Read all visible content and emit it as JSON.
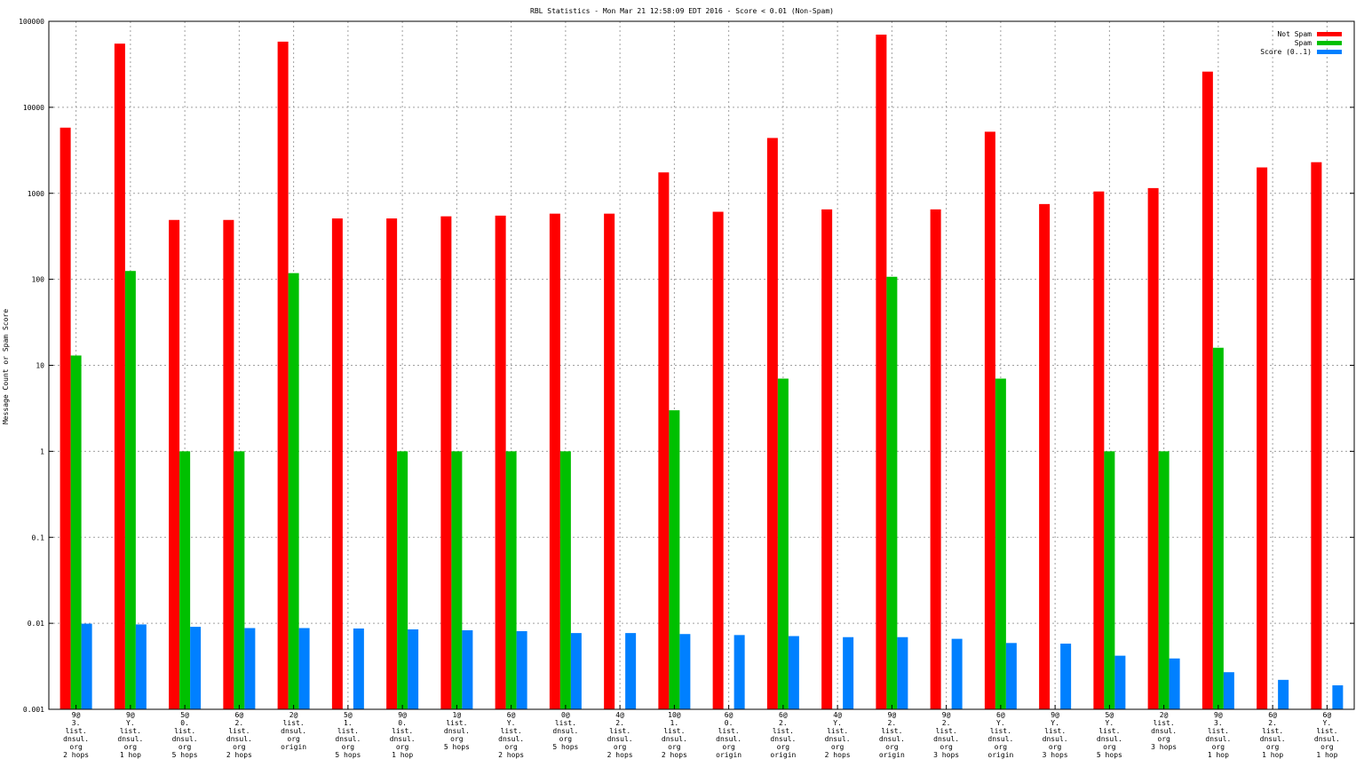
{
  "chart_data": {
    "type": "bar",
    "title": "RBL Statistics - Mon Mar 21 12:58:09 EDT 2016 - Score < 0.01 (Non-Spam)",
    "xlabel": "",
    "ylabel": "Message Count or Spam Score",
    "yscale": "log",
    "ylim": [
      0.001,
      100000
    ],
    "yticks": [
      "0.001",
      "0.01",
      "0.1",
      "1",
      "10",
      "100",
      "1000",
      "10000",
      "100000"
    ],
    "grid": true,
    "legend_position": "top-right",
    "categories": [
      [
        "9@",
        "3.",
        "list.",
        "dnsul.",
        "org",
        "2 hops"
      ],
      [
        "9@",
        "Y.",
        "list.",
        "dnsul.",
        "org",
        "1 hop"
      ],
      [
        "5@",
        "0.",
        "list.",
        "dnsul.",
        "org",
        "5 hops"
      ],
      [
        "6@",
        "2.",
        "list.",
        "dnsul.",
        "org",
        "2 hops"
      ],
      [
        "2@",
        "list.",
        "dnsul.",
        "org",
        "origin"
      ],
      [
        "5@",
        "1.",
        "list.",
        "dnsul.",
        "org",
        "5 hops"
      ],
      [
        "9@",
        "0.",
        "list.",
        "dnsul.",
        "org",
        "1 hop"
      ],
      [
        "1@",
        "list.",
        "dnsul.",
        "org",
        "5 hops"
      ],
      [
        "6@",
        "Y.",
        "list.",
        "dnsul.",
        "org",
        "2 hops"
      ],
      [
        "0@",
        "list.",
        "dnsul.",
        "org",
        "5 hops"
      ],
      [
        "4@",
        "2.",
        "list.",
        "dnsul.",
        "org",
        "2 hops"
      ],
      [
        "10@",
        "1.",
        "list.",
        "dnsul.",
        "org",
        "2 hops"
      ],
      [
        "6@",
        "0.",
        "list.",
        "dnsul.",
        "org",
        "origin"
      ],
      [
        "6@",
        "2.",
        "list.",
        "dnsul.",
        "org",
        "origin"
      ],
      [
        "4@",
        "Y.",
        "list.",
        "dnsul.",
        "org",
        "2 hops"
      ],
      [
        "9@",
        "2.",
        "list.",
        "dnsul.",
        "org",
        "origin"
      ],
      [
        "9@",
        "2.",
        "list.",
        "dnsul.",
        "org",
        "3 hops"
      ],
      [
        "6@",
        "Y.",
        "list.",
        "dnsul.",
        "org",
        "origin"
      ],
      [
        "9@",
        "Y.",
        "list.",
        "dnsul.",
        "org",
        "3 hops"
      ],
      [
        "5@",
        "Y.",
        "list.",
        "dnsul.",
        "org",
        "5 hops"
      ],
      [
        "2@",
        "list.",
        "dnsul.",
        "org",
        "3 hops"
      ],
      [
        "9@",
        "3.",
        "list.",
        "dnsul.",
        "org",
        "1 hop"
      ],
      [
        "6@",
        "2.",
        "list.",
        "dnsul.",
        "org",
        "1 hop"
      ],
      [
        "6@",
        "Y.",
        "list.",
        "dnsul.",
        "org",
        "1 hop"
      ]
    ],
    "series": [
      {
        "name": "Not Spam",
        "color": "#ff0000",
        "values": [
          5800,
          55000,
          490,
          490,
          58000,
          510,
          510,
          540,
          550,
          580,
          580,
          1750,
          610,
          4400,
          650,
          70000,
          650,
          5200,
          750,
          1050,
          1150,
          26000,
          2000,
          2300
        ]
      },
      {
        "name": "Spam",
        "color": "#00c000",
        "values": [
          13,
          125,
          1,
          1,
          118,
          null,
          1,
          1,
          1,
          1,
          null,
          3,
          null,
          7,
          null,
          107,
          null,
          7,
          null,
          1,
          1,
          16,
          null,
          null
        ]
      },
      {
        "name": "Score (0..1)",
        "color": "#0080ff",
        "values": [
          0.0099,
          0.0097,
          0.0091,
          0.0088,
          0.0088,
          0.0087,
          0.0085,
          0.0083,
          0.0081,
          0.0077,
          0.0077,
          0.0075,
          0.0073,
          0.0071,
          0.0069,
          0.0069,
          0.0066,
          0.0059,
          0.0058,
          0.0042,
          0.0039,
          0.0027,
          0.0022,
          0.0019
        ]
      }
    ]
  }
}
